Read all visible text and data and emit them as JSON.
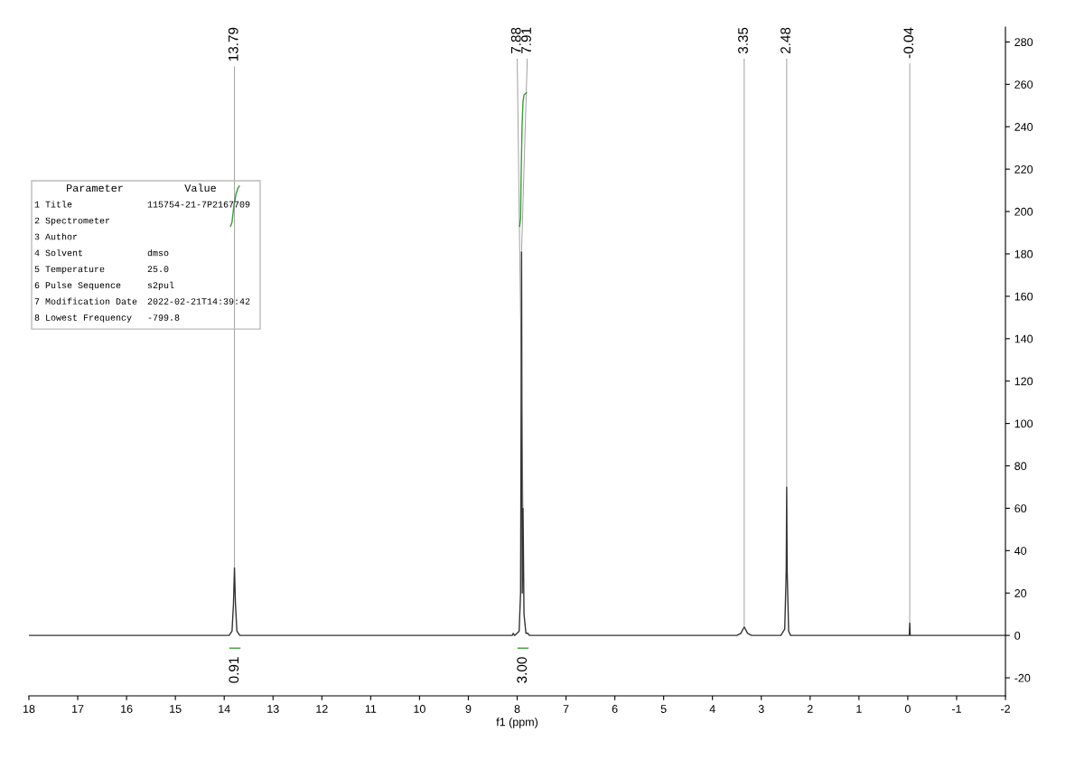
{
  "chart_data": {
    "type": "line",
    "xlabel": "f1 (ppm)",
    "xlim": [
      18,
      -2
    ],
    "xticks": [
      18,
      17,
      16,
      15,
      14,
      13,
      12,
      11,
      10,
      9,
      8,
      7,
      6,
      5,
      4,
      3,
      2,
      1,
      0,
      -1,
      -2
    ],
    "ylim": [
      -28.5,
      287
    ],
    "yticks": [
      -20,
      0,
      20,
      40,
      60,
      80,
      100,
      120,
      140,
      160,
      180,
      200,
      220,
      240,
      260,
      280
    ],
    "grid": false,
    "legend": false,
    "series": [
      {
        "color": "#333333",
        "x": [
          18,
          13.9,
          13.84,
          13.81,
          13.79,
          13.77,
          13.74,
          13.68,
          8.1,
          8.08,
          8.05,
          7.96,
          7.93,
          7.91,
          7.895,
          7.88,
          7.86,
          7.82,
          7.78,
          7.75,
          3.5,
          3.42,
          3.35,
          3.28,
          3.2,
          2.6,
          2.52,
          2.49,
          2.48,
          2.47,
          2.44,
          2.4,
          -0.03,
          -0.04,
          -0.05,
          -2
        ],
        "values": [
          0,
          0,
          2,
          15,
          32,
          15,
          2,
          0,
          0,
          1,
          0,
          2,
          20,
          181,
          20,
          60,
          10,
          1,
          1,
          0,
          0,
          1,
          4,
          1,
          0,
          0,
          3,
          30,
          70,
          30,
          2,
          0,
          0,
          6,
          0,
          0
        ]
      },
      {
        "color": "#3a9a3a",
        "x": [
          13.87,
          13.84,
          13.8,
          13.76,
          13.72,
          13.69
        ],
        "values": [
          193,
          195,
          203,
          208,
          211,
          212
        ]
      },
      {
        "color": "#3a9a3a",
        "x": [
          7.95,
          7.93,
          7.92,
          7.9,
          7.88,
          7.86,
          7.81
        ],
        "values": [
          193,
          197,
          215,
          240,
          252,
          255,
          256
        ]
      }
    ],
    "annotations": [
      {
        "text": "13.79",
        "x": 13.79,
        "y": 32
      },
      {
        "text": "7.91",
        "x": 7.91,
        "y": 181
      },
      {
        "text": "7.88",
        "x": 7.88,
        "y": 60
      },
      {
        "text": "3.35",
        "x": 3.35,
        "y": 4
      },
      {
        "text": "2.48",
        "x": 2.48,
        "y": 70
      },
      {
        "text": "-0.04",
        "x": -0.04,
        "y": 6
      },
      "0.91",
      "3.00",
      "Parameter\tValue",
      "1 Title\t115754-21-7P2167709",
      "2 Spectrometer",
      "3 Author",
      "4 Solvent\tdmso",
      "5 Temperature\t25.0",
      "6 Pulse Sequence\ts2pul",
      "7 Modification Date\t2022-02-21T14:39:42",
      "8 Lowest Frequency\t-799.8"
    ]
  }
}
